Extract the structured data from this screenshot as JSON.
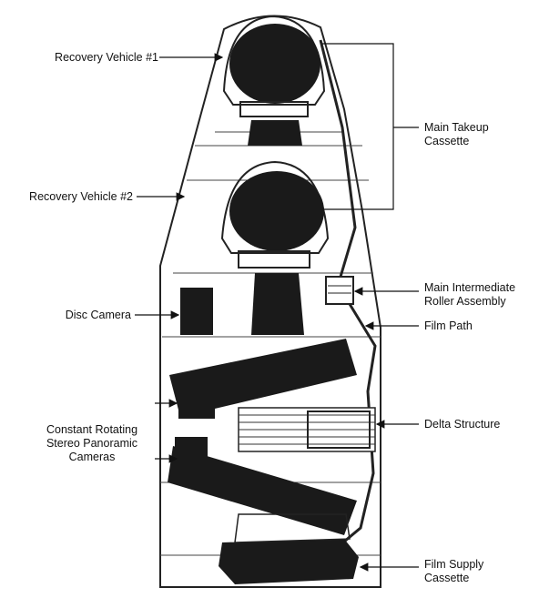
{
  "labels": {
    "recovery_vehicle_1": "Recovery Vehicle #1",
    "recovery_vehicle_2": "Recovery Vehicle #2",
    "disc_camera": "Disc Camera",
    "panoramic_cameras": "Constant Rotating\nStereo Panoramic\nCameras",
    "main_takeup_cassette": "Main Takeup\nCassette",
    "main_intermediate_roller": "Main Intermediate\nRoller Assembly",
    "film_path": "Film Path",
    "delta_structure": "Delta Structure",
    "film_supply_cassette": "Film Supply\nCassette"
  }
}
